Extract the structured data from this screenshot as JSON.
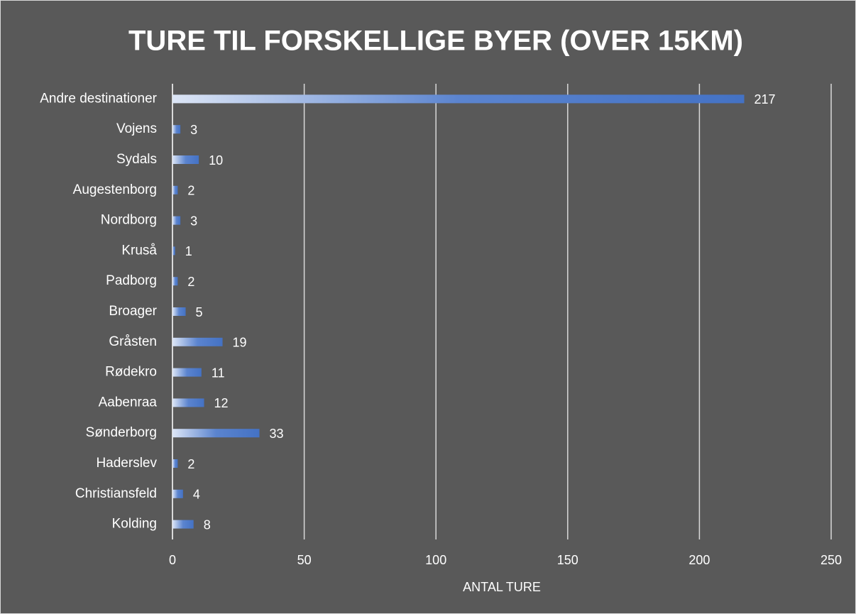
{
  "chart_data": {
    "type": "hbar",
    "title": "TURE TIL FORSKELLIGE BYER (OVER 15KM)",
    "x_label": "ANTAL TURE",
    "categories": [
      "Kolding",
      "Christiansfeld",
      "Haderslev",
      "Sønderborg",
      "Aabenraa",
      "Rødekro",
      "Gråsten",
      "Broager",
      "Padborg",
      "Kruså",
      "Nordborg",
      "Augestenborg",
      "Sydals",
      "Vojens",
      "Andre destinationer"
    ],
    "values": [
      8,
      4,
      2,
      33,
      12,
      11,
      19,
      5,
      2,
      1,
      3,
      2,
      10,
      3,
      217
    ],
    "color": "#4472c4",
    "xlim": [
      0,
      250
    ],
    "xticks": [
      0,
      50,
      100,
      150,
      200,
      250
    ],
    "grid": true
  }
}
